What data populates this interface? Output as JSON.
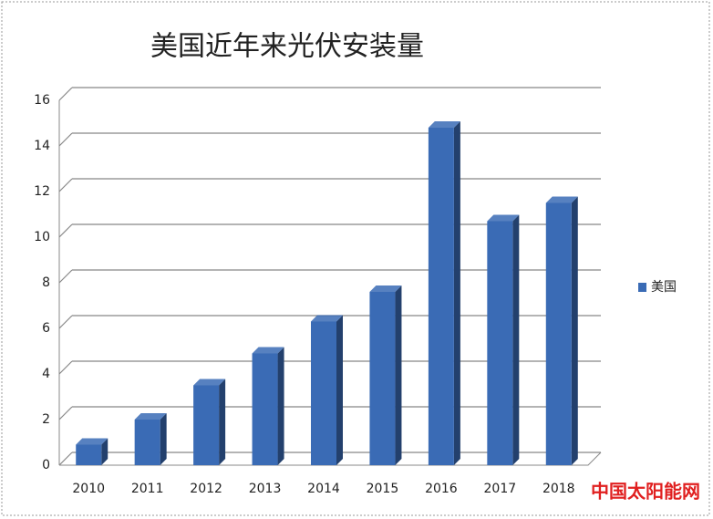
{
  "chart_data": {
    "type": "bar",
    "title": "美国近年来光伏安装量",
    "categories": [
      "2010",
      "2011",
      "2012",
      "2013",
      "2014",
      "2015",
      "2016",
      "2017",
      "2018"
    ],
    "series": [
      {
        "name": "美国",
        "color": "#3a6bb5",
        "values": [
          0.9,
          2.0,
          3.5,
          4.9,
          6.3,
          7.6,
          14.8,
          10.7,
          11.5
        ]
      }
    ],
    "ylim": [
      0,
      16
    ],
    "yticks": [
      0,
      2,
      4,
      6,
      8,
      10,
      12,
      14,
      16
    ],
    "grid": true,
    "legend": "right",
    "watermark": "中国太阳能网"
  }
}
